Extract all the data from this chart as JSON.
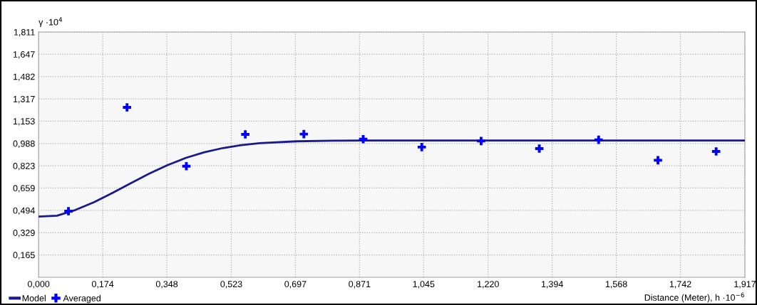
{
  "chart_data": {
    "type": "scatter",
    "ylabel": "γ ·10$^{4}$",
    "xlabel": "Distance (Meter), h ·10$^{−6}$",
    "xlim": [
      0,
      1.917
    ],
    "ylim": [
      0,
      1.811
    ],
    "xticks": [
      {
        "value": 0,
        "label": "0,000"
      },
      {
        "value": 0.174,
        "label": "0,174"
      },
      {
        "value": 0.348,
        "label": "0,348"
      },
      {
        "value": 0.523,
        "label": "0,523"
      },
      {
        "value": 0.697,
        "label": "0,697"
      },
      {
        "value": 0.871,
        "label": "0,871"
      },
      {
        "value": 1.045,
        "label": "1,045"
      },
      {
        "value": 1.22,
        "label": "1,220"
      },
      {
        "value": 1.394,
        "label": "1,394"
      },
      {
        "value": 1.568,
        "label": "1,568"
      },
      {
        "value": 1.742,
        "label": "1,742"
      },
      {
        "value": 1.917,
        "label": "1,917"
      }
    ],
    "yticks": [
      {
        "value": 0.165,
        "label": "0,165"
      },
      {
        "value": 0.329,
        "label": "0,329"
      },
      {
        "value": 0.494,
        "label": "0,494"
      },
      {
        "value": 0.659,
        "label": "0,659"
      },
      {
        "value": 0.823,
        "label": "0,823"
      },
      {
        "value": 0.988,
        "label": "0,988"
      },
      {
        "value": 1.153,
        "label": "1,153"
      },
      {
        "value": 1.317,
        "label": "1,317"
      },
      {
        "value": 1.482,
        "label": "1,482"
      },
      {
        "value": 1.647,
        "label": "1,647"
      },
      {
        "value": 1.811,
        "label": "1,811"
      }
    ],
    "grid": true,
    "legend": "bottom left",
    "series": [
      {
        "name": "Model",
        "type": "line",
        "color": "#1a1a8c",
        "marker": "none",
        "x": [
          0,
          0.05,
          0.1,
          0.15,
          0.2,
          0.25,
          0.3,
          0.35,
          0.4,
          0.45,
          0.5,
          0.55,
          0.6,
          0.7,
          0.8,
          0.9,
          1.917
        ],
        "values": [
          0.448,
          0.455,
          0.497,
          0.554,
          0.622,
          0.694,
          0.765,
          0.828,
          0.882,
          0.923,
          0.954,
          0.976,
          0.99,
          1.004,
          1.008,
          1.01,
          1.01
        ]
      },
      {
        "name": "Averaged",
        "color": "#0000ff",
        "marker": "cross",
        "x": [
          0.081,
          0.24,
          0.401,
          0.561,
          0.72,
          0.881,
          1.04,
          1.201,
          1.359,
          1.52,
          1.681,
          1.839
        ],
        "values": [
          0.488,
          1.255,
          0.82,
          1.055,
          1.057,
          1.02,
          0.961,
          1.006,
          0.95,
          1.015,
          0.864,
          0.929
        ]
      }
    ]
  }
}
